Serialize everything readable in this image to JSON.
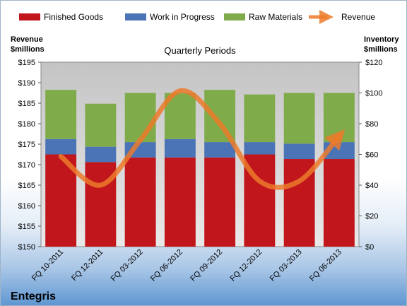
{
  "chart_data": {
    "type": "bar",
    "subtitle": "Quarterly Periods",
    "brand": "Entegris",
    "left_axis": {
      "title_lines": [
        "Revenue",
        "$millions"
      ],
      "range": [
        150,
        195
      ],
      "step": 5,
      "prefix": "$"
    },
    "right_axis": {
      "title_lines": [
        "Inventory",
        "$millions"
      ],
      "range": [
        0,
        120
      ],
      "step": 20,
      "prefix": "$"
    },
    "categories": [
      "FQ 10-2011",
      "FQ 12-2011",
      "FQ 03-2012",
      "FQ 06-2012",
      "FQ 09-2012",
      "FQ 12-2012",
      "FQ 03-2013",
      "FQ 06-2013"
    ],
    "stacked": true,
    "series": [
      {
        "name": "Finished Goods",
        "axis": "right",
        "color": "#c0161c",
        "values": [
          60,
          55,
          58,
          58,
          58,
          60,
          57,
          57
        ]
      },
      {
        "name": "Work in Progress",
        "axis": "right",
        "color": "#4a74b5",
        "values": [
          10,
          10,
          10,
          12,
          10,
          8,
          10,
          11
        ]
      },
      {
        "name": "Raw Materials",
        "axis": "right",
        "color": "#80ab4a",
        "values": [
          32,
          28,
          32,
          30,
          34,
          31,
          33,
          32
        ]
      },
      {
        "name": "Revenue",
        "axis": "left",
        "type": "line",
        "color": "#ec7a2a",
        "values": [
          172,
          165,
          176,
          188,
          180,
          166,
          166,
          177
        ]
      }
    ],
    "grid": false,
    "legend": "top"
  }
}
